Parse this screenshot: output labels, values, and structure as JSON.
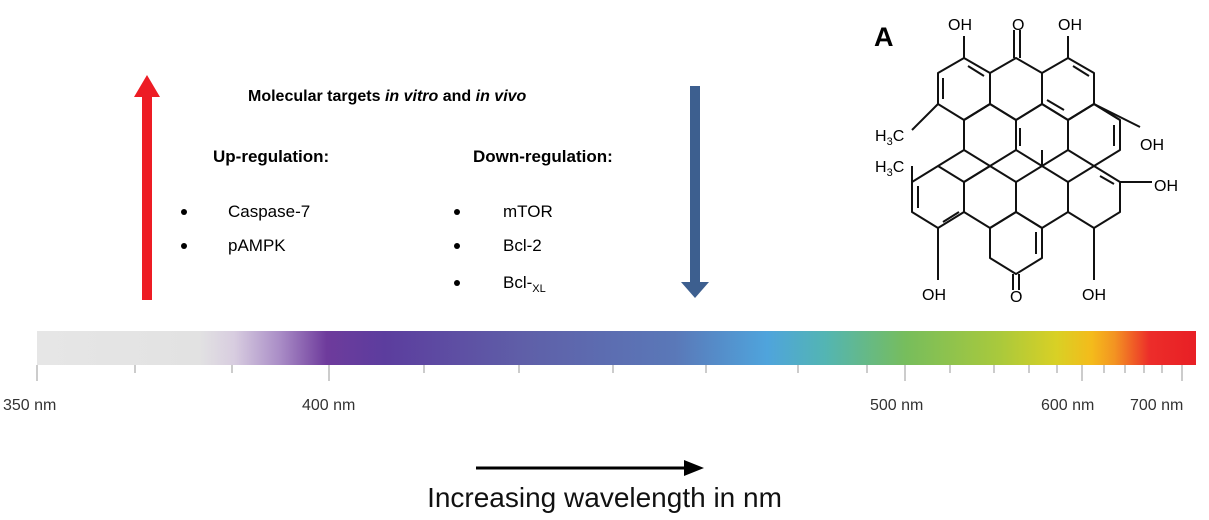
{
  "targets": {
    "title_prefix": "Molecular targets ",
    "title_in_vitro": "in vitro",
    "title_and": " and ",
    "title_in_vivo": "in vivo",
    "up_heading": "Up-regulation:",
    "down_heading": "Down-regulation:",
    "up_items": [
      "Caspase-7",
      "pAMPK"
    ],
    "down_items": [
      "mTOR",
      "Bcl-2"
    ],
    "down_item_3_base": "Bcl-",
    "down_item_3_sub": "XL"
  },
  "structure": {
    "panel_label": "A",
    "groups": {
      "oh": "OH",
      "o": "O",
      "h3c_h": "H",
      "h3c_3": "3",
      "h3c_c": "C"
    }
  },
  "spectrum": {
    "labels": [
      "350 nm",
      "400 nm",
      "500 nm",
      "600 nm",
      "700 nm"
    ],
    "caption": "Increasing wavelength in nm"
  },
  "colors": {
    "up_arrow": "#ed1c24",
    "down_arrow": "#3d5f8f"
  }
}
